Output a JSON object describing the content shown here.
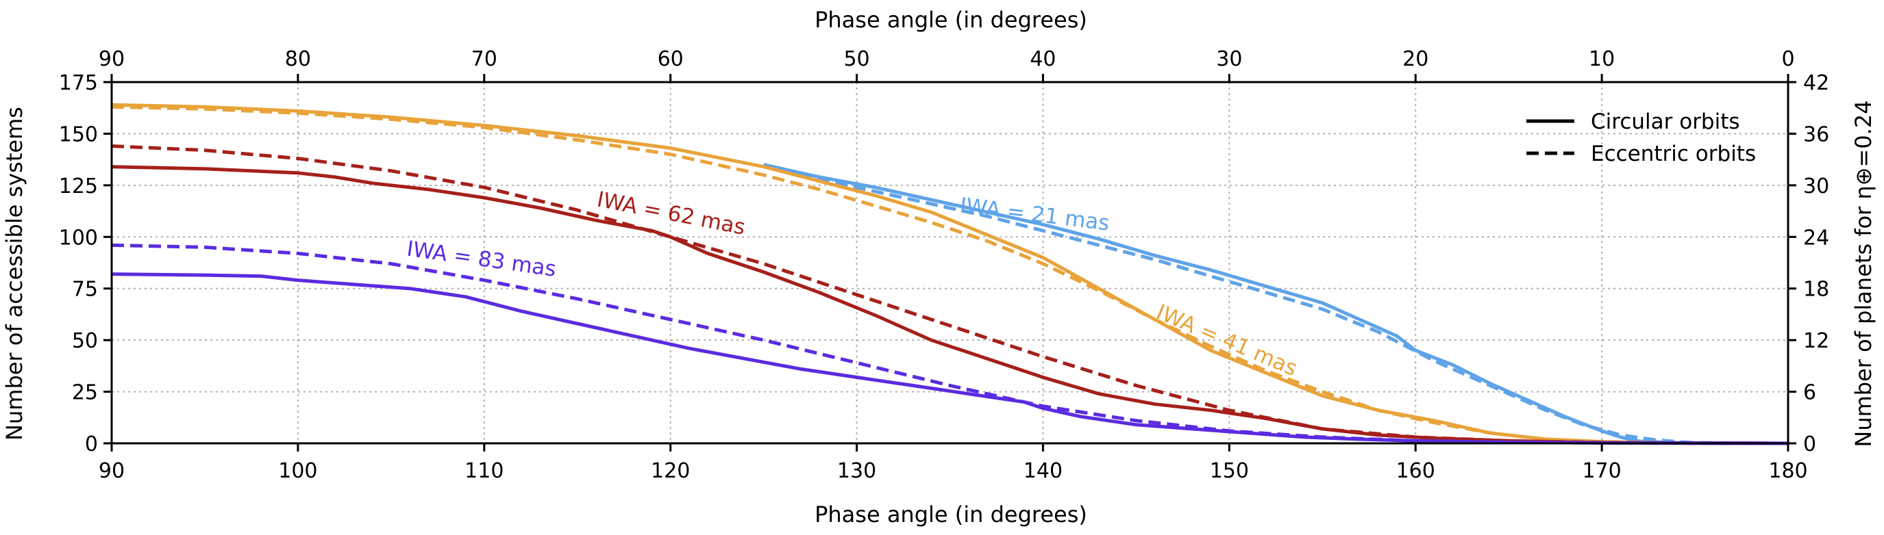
{
  "chart_data": {
    "type": "line",
    "xlabel_bottom": "Phase angle (in degrees)",
    "xlabel_top": "Phase angle (in degrees)",
    "ylabel_left": "Number of accessible systems",
    "ylabel_right": "Number of planets for η⊕=0.24",
    "xlim": [
      90,
      180
    ],
    "ylim": [
      0,
      175
    ],
    "right_ylim": [
      0,
      42
    ],
    "x_ticks": [
      "90",
      "100",
      "110",
      "120",
      "130",
      "140",
      "150",
      "160",
      "170",
      "180"
    ],
    "x_tick_values": [
      90,
      100,
      110,
      120,
      130,
      140,
      150,
      160,
      170,
      180
    ],
    "top_ticks": [
      "90",
      "80",
      "70",
      "60",
      "50",
      "40",
      "30",
      "20",
      "10",
      "0"
    ],
    "y_ticks": [
      "0",
      "25",
      "50",
      "75",
      "100",
      "125",
      "150",
      "175"
    ],
    "y_tick_values": [
      0,
      25,
      50,
      75,
      100,
      125,
      150,
      175
    ],
    "right_ticks": [
      "0",
      "6",
      "12",
      "18",
      "24",
      "30",
      "36",
      "42"
    ],
    "right_tick_values": [
      0,
      6,
      12,
      18,
      24,
      30,
      36,
      42
    ],
    "grid": true,
    "legend_position": "top-right",
    "legend": [
      {
        "label": "Circular orbits",
        "style": "solid"
      },
      {
        "label": "Eccentric orbits",
        "style": "dashed"
      }
    ],
    "annotations": [
      {
        "text": "IWA = 21 mas",
        "color": "#5fa3e8",
        "x": 135.5,
        "y": 112,
        "rotation": 7
      },
      {
        "text": "IWA = 41 mas",
        "color": "#e8a33a",
        "x": 146,
        "y": 61,
        "rotation": 23
      },
      {
        "text": "IWA = 62 mas",
        "color": "#a5201a",
        "x": 116,
        "y": 115,
        "rotation": 11
      },
      {
        "text": "IWA = 83 mas",
        "color": "#5b2be0",
        "x": 105.8,
        "y": 91,
        "rotation": 8
      }
    ],
    "series": [
      {
        "name": "IWA = 21 mas circular",
        "color": "#5fa3e8",
        "style": "solid",
        "x": [
          125,
          128,
          131,
          134,
          137,
          140,
          143,
          146,
          149,
          152,
          155,
          158,
          159,
          160,
          162,
          164,
          166,
          168,
          170,
          171,
          172,
          174,
          176,
          180
        ],
        "y": [
          135,
          129,
          124,
          118,
          112,
          106,
          99,
          91,
          84,
          76,
          68,
          56,
          52,
          45,
          38,
          29,
          21,
          13,
          6,
          3,
          1,
          0.3,
          0,
          0
        ]
      },
      {
        "name": "IWA = 21 mas eccentric",
        "color": "#5fa3e8",
        "style": "dashed",
        "x": [
          125,
          128,
          131,
          134,
          137,
          140,
          143,
          146,
          149,
          152,
          155,
          158,
          161,
          163,
          165,
          167,
          169,
          171,
          173,
          175,
          180
        ],
        "y": [
          135,
          128,
          122,
          116,
          110,
          103,
          96,
          89,
          81,
          73,
          65,
          54,
          40,
          32,
          24,
          16,
          9,
          4,
          1.5,
          0.3,
          0
        ]
      },
      {
        "name": "IWA = 41 mas circular",
        "color": "#e8a33a",
        "style": "solid",
        "x": [
          90,
          95,
          100,
          105,
          110,
          115,
          120,
          125,
          128,
          131,
          134,
          137,
          140,
          143,
          146,
          149,
          152,
          155,
          158,
          161,
          164,
          167,
          170,
          173,
          180
        ],
        "y": [
          164,
          163,
          161,
          158,
          154,
          149,
          143,
          134,
          127,
          120,
          112,
          101,
          90,
          75,
          60,
          45,
          34,
          23,
          16,
          11,
          5,
          2,
          0.8,
          0.2,
          0
        ]
      },
      {
        "name": "IWA = 41 mas eccentric",
        "color": "#e8a33a",
        "style": "dashed",
        "x": [
          90,
          95,
          100,
          105,
          110,
          115,
          120,
          125,
          128,
          131,
          134,
          137,
          140,
          143,
          146,
          149,
          152,
          155,
          158,
          161,
          164,
          167,
          170,
          173,
          180
        ],
        "y": [
          163,
          162,
          160,
          157,
          153,
          147,
          140,
          130,
          123,
          115,
          107,
          98,
          87,
          74,
          60,
          47,
          35,
          25,
          16,
          10,
          5,
          2,
          0.8,
          0.2,
          0
        ]
      },
      {
        "name": "IWA = 62 mas circular",
        "color": "#a5201a",
        "style": "solid",
        "x": [
          90,
          95,
          100,
          102,
          104,
          107,
          110,
          113,
          116,
          119,
          120,
          122,
          125,
          128,
          131,
          134,
          137,
          140,
          143,
          146,
          149,
          152,
          155,
          158,
          161,
          165,
          170,
          180
        ],
        "y": [
          134,
          133,
          131,
          129,
          126,
          123,
          119,
          114,
          108,
          103,
          100,
          92,
          83,
          73,
          62,
          50,
          41,
          32,
          24,
          19,
          16,
          12,
          7,
          4,
          2.5,
          1.2,
          0.3,
          0
        ]
      },
      {
        "name": "IWA = 62 mas eccentric",
        "color": "#a5201a",
        "style": "dashed",
        "x": [
          90,
          95,
          100,
          105,
          110,
          115,
          120,
          125,
          130,
          135,
          140,
          145,
          150,
          155,
          160,
          165,
          170,
          175,
          180
        ],
        "y": [
          144,
          142,
          138,
          132,
          124,
          113,
          100,
          87,
          72,
          57,
          42,
          28,
          16,
          7,
          3,
          1.2,
          0.4,
          0.1,
          0
        ]
      },
      {
        "name": "IWA = 83 mas circular",
        "color": "#5b2be0",
        "style": "solid",
        "x": [
          90,
          95,
          98,
          100,
          103,
          106,
          109,
          112,
          115,
          118,
          121,
          124,
          127,
          130,
          133,
          136,
          139,
          140,
          142,
          145,
          148,
          151,
          154,
          157,
          160,
          165,
          170,
          180
        ],
        "y": [
          82,
          81.5,
          81,
          79,
          77,
          75,
          71,
          64,
          58,
          52,
          46,
          41,
          36,
          32,
          28,
          24,
          20,
          17,
          13,
          9,
          7,
          5,
          3,
          2,
          1.2,
          0.5,
          0.2,
          0
        ]
      },
      {
        "name": "IWA = 83 mas eccentric",
        "color": "#5b2be0",
        "style": "dashed",
        "x": [
          90,
          95,
          100,
          105,
          110,
          115,
          120,
          125,
          130,
          135,
          140,
          145,
          150,
          155,
          160,
          165,
          170,
          175,
          180
        ],
        "y": [
          96,
          95,
          92,
          87,
          79,
          70,
          60,
          50,
          39,
          28,
          18,
          11,
          6,
          3,
          1.2,
          0.5,
          0.2,
          0.1,
          0
        ]
      }
    ]
  }
}
